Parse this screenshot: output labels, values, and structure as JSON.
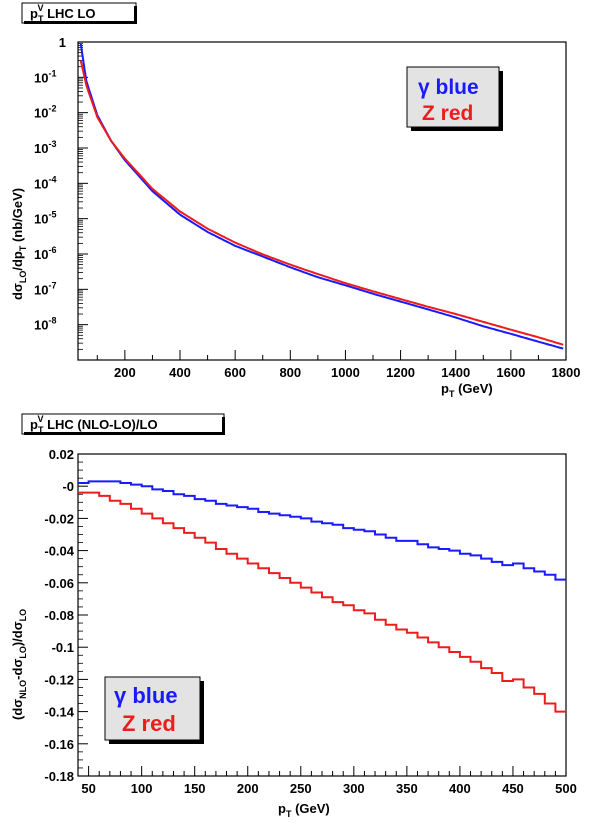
{
  "colors": {
    "blue": "#1a1aff",
    "red": "#ee1c1c",
    "legend_bg": "#e3e3e3"
  },
  "chart_data": [
    {
      "type": "line",
      "title_main": "p",
      "title_sub": "T",
      "title_sup": "V",
      "title_rest": " LHC LO",
      "xlabel_main": "p",
      "xlabel_sub": "T",
      "xlabel_rest": "  (GeV)",
      "ylabel_parts": [
        "dσ",
        "LO",
        "/dp",
        "T",
        "  (nb/GeV)"
      ],
      "xlim": [
        30,
        1800
      ],
      "ylim": [
        1e-09,
        1
      ],
      "yscale": "log",
      "xticks": [
        "200",
        "400",
        "600",
        "800",
        "1000",
        "1200",
        "1400",
        "1600",
        "1800"
      ],
      "xtick_values": [
        200,
        400,
        600,
        800,
        1000,
        1200,
        1400,
        1600,
        1800
      ],
      "yticks": [
        {
          "value": 1,
          "base": "1",
          "exp": ""
        },
        {
          "value": 0.1,
          "base": "10",
          "exp": "-1"
        },
        {
          "value": 0.01,
          "base": "10",
          "exp": "-2"
        },
        {
          "value": 0.001,
          "base": "10",
          "exp": "-3"
        },
        {
          "value": 0.0001,
          "base": "10",
          "exp": "-4"
        },
        {
          "value": 1e-05,
          "base": "10",
          "exp": "-5"
        },
        {
          "value": 1e-06,
          "base": "10",
          "exp": "-6"
        },
        {
          "value": 1e-07,
          "base": "10",
          "exp": "-7"
        },
        {
          "value": 1e-08,
          "base": "10",
          "exp": "-8"
        }
      ],
      "legend": [
        {
          "symbol": "γ",
          "text": " blue",
          "color": "blue"
        },
        {
          "symbol": "",
          "text": "Z red",
          "color": "red"
        }
      ],
      "series": [
        {
          "color": "blue",
          "x": [
            40,
            60,
            100,
            150,
            200,
            300,
            400,
            500,
            600,
            700,
            800,
            900,
            1000,
            1100,
            1200,
            1300,
            1400,
            1500,
            1600,
            1700,
            1790
          ],
          "y": [
            0.9,
            0.08,
            0.0085,
            0.0016,
            0.00045,
            6e-05,
            1.3e-05,
            4.2e-06,
            1.7e-06,
            8.5e-07,
            4.2e-07,
            2.2e-07,
            1.3e-07,
            7.5e-08,
            4.5e-08,
            2.7e-08,
            1.6e-08,
            9e-09,
            5.5e-09,
            3.3e-09,
            2.1e-09
          ]
        },
        {
          "color": "red",
          "x": [
            40,
            60,
            100,
            150,
            200,
            300,
            400,
            500,
            600,
            700,
            800,
            900,
            1000,
            1100,
            1200,
            1300,
            1400,
            1500,
            1600,
            1700,
            1790
          ],
          "y": [
            0.3,
            0.06,
            0.0075,
            0.0016,
            0.0005,
            7e-05,
            1.6e-05,
            5.2e-06,
            2.1e-06,
            9.8e-07,
            5e-07,
            2.7e-07,
            1.5e-07,
            8.8e-08,
            5.3e-08,
            3.2e-08,
            2e-08,
            1.2e-08,
            7.2e-09,
            4.4e-09,
            2.7e-09
          ]
        }
      ]
    },
    {
      "type": "line",
      "title_main": "p",
      "title_sub": "T",
      "title_sup": "V",
      "title_rest": " LHC (NLO-LO)/LO",
      "xlabel_main": "p",
      "xlabel_sub": "T",
      "xlabel_rest": "  (GeV)",
      "ylabel_parts": [
        "(dσ",
        "NLO",
        "-dσ",
        "LO",
        ")/dσ",
        "LO"
      ],
      "xlim": [
        40,
        500
      ],
      "ylim": [
        -0.18,
        0.02
      ],
      "xticks": [
        "50",
        "100",
        "150",
        "200",
        "250",
        "300",
        "350",
        "400",
        "450",
        "500"
      ],
      "xtick_values": [
        50,
        100,
        150,
        200,
        250,
        300,
        350,
        400,
        450,
        500
      ],
      "yticks": [
        "0.02",
        "-0",
        "-0.02",
        "-0.04",
        "-0.06",
        "-0.08",
        "-0.1",
        "-0.12",
        "-0.14",
        "-0.16",
        "-0.18"
      ],
      "ytick_values": [
        0.02,
        0,
        -0.02,
        -0.04,
        -0.06,
        -0.08,
        -0.1,
        -0.12,
        -0.14,
        -0.16,
        -0.18
      ],
      "legend": [
        {
          "symbol": "γ",
          "text": " blue",
          "color": "blue"
        },
        {
          "symbol": "",
          "text": "Z red",
          "color": "red"
        }
      ],
      "series": [
        {
          "color": "blue",
          "step": true,
          "x": [
            40,
            50,
            60,
            70,
            80,
            90,
            100,
            110,
            120,
            130,
            140,
            150,
            160,
            170,
            180,
            190,
            200,
            210,
            220,
            230,
            240,
            250,
            260,
            270,
            280,
            290,
            300,
            310,
            320,
            330,
            340,
            350,
            360,
            370,
            380,
            390,
            400,
            410,
            420,
            430,
            440,
            450,
            460,
            470,
            480,
            490,
            500
          ],
          "y": [
            0.002,
            0.003,
            0.003,
            0.003,
            0.002,
            0.001,
            0.0,
            -0.002,
            -0.003,
            -0.005,
            -0.006,
            -0.008,
            -0.009,
            -0.011,
            -0.012,
            -0.013,
            -0.014,
            -0.016,
            -0.017,
            -0.018,
            -0.019,
            -0.02,
            -0.022,
            -0.023,
            -0.024,
            -0.026,
            -0.027,
            -0.028,
            -0.03,
            -0.032,
            -0.034,
            -0.034,
            -0.036,
            -0.038,
            -0.039,
            -0.04,
            -0.042,
            -0.043,
            -0.045,
            -0.047,
            -0.049,
            -0.048,
            -0.051,
            -0.053,
            -0.055,
            -0.058,
            -0.061
          ]
        },
        {
          "color": "red",
          "step": true,
          "x": [
            40,
            50,
            60,
            70,
            80,
            90,
            100,
            110,
            120,
            130,
            140,
            150,
            160,
            170,
            180,
            190,
            200,
            210,
            220,
            230,
            240,
            250,
            260,
            270,
            280,
            290,
            300,
            310,
            320,
            330,
            340,
            350,
            360,
            370,
            380,
            390,
            400,
            410,
            420,
            430,
            440,
            450,
            460,
            470,
            480,
            490,
            500
          ],
          "y": [
            -0.004,
            -0.004,
            -0.006,
            -0.009,
            -0.011,
            -0.014,
            -0.017,
            -0.02,
            -0.023,
            -0.026,
            -0.029,
            -0.032,
            -0.035,
            -0.039,
            -0.042,
            -0.045,
            -0.048,
            -0.051,
            -0.054,
            -0.057,
            -0.06,
            -0.063,
            -0.066,
            -0.069,
            -0.072,
            -0.074,
            -0.077,
            -0.079,
            -0.083,
            -0.086,
            -0.089,
            -0.091,
            -0.094,
            -0.097,
            -0.1,
            -0.103,
            -0.106,
            -0.109,
            -0.113,
            -0.116,
            -0.121,
            -0.12,
            -0.125,
            -0.129,
            -0.135,
            -0.14,
            -0.137
          ]
        }
      ]
    }
  ]
}
